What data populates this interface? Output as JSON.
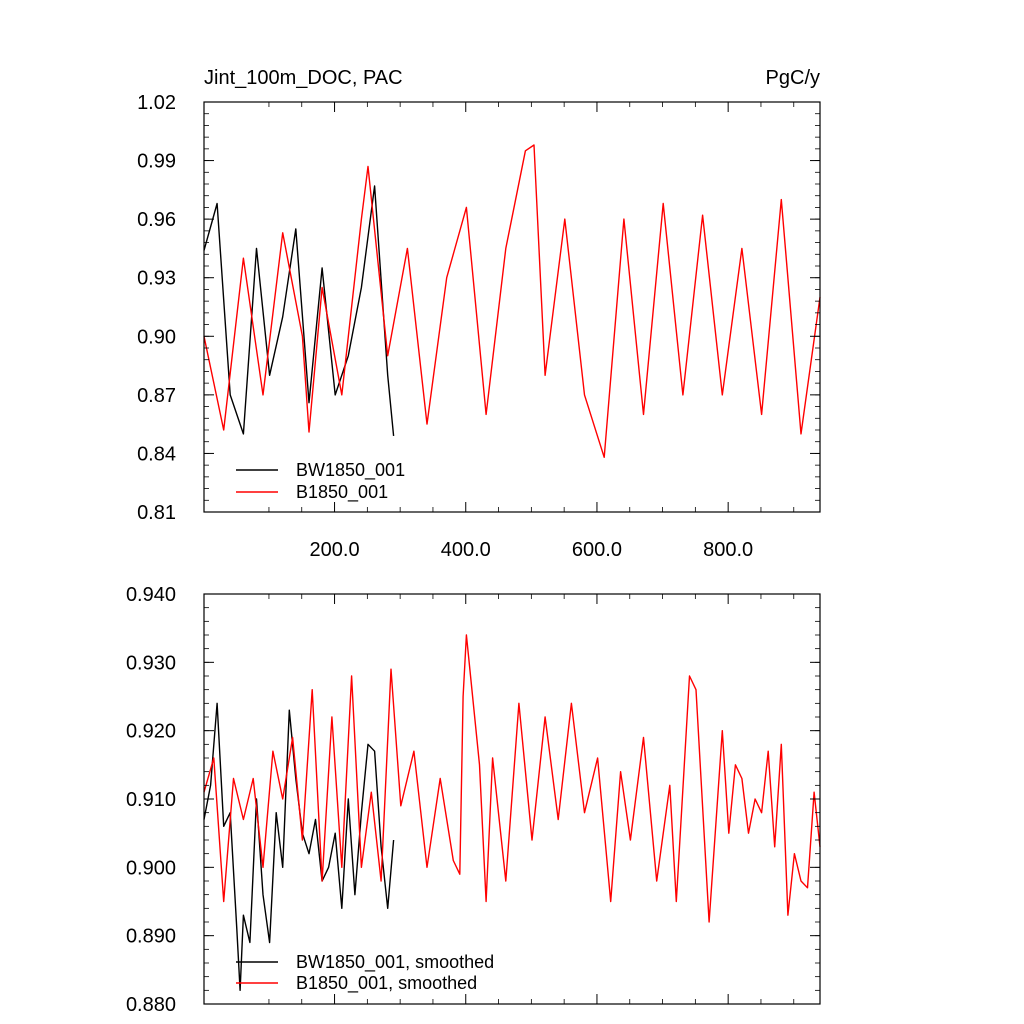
{
  "chart_data": [
    {
      "type": "line",
      "title": "Jint_100m_DOC, PAC",
      "units": "PgC/y",
      "xlabel": "",
      "ylabel": "",
      "xlim": [
        1,
        940
      ],
      "ylim": [
        0.81,
        1.02
      ],
      "yticks": [
        0.81,
        0.84,
        0.87,
        0.9,
        0.93,
        0.96,
        0.99,
        1.02
      ],
      "ytick_labels": [
        "0.81",
        "0.84",
        "0.87",
        "0.90",
        "0.93",
        "0.96",
        "0.99",
        "1.02"
      ],
      "xticks": [
        200,
        400,
        600,
        800
      ],
      "xtick_labels": [
        "200.0",
        "400.0",
        "600.0",
        "800.0"
      ],
      "legend_position": "bottom-left",
      "series": [
        {
          "name": "BW1850_001",
          "color": "#000000",
          "x": [
            1,
            21,
            41,
            61,
            81,
            101,
            121,
            141,
            161,
            181,
            201,
            221,
            241,
            261,
            281,
            290
          ],
          "y": [
            0.944,
            0.968,
            0.87,
            0.85,
            0.945,
            0.88,
            0.91,
            0.955,
            0.866,
            0.935,
            0.87,
            0.89,
            0.925,
            0.977,
            0.88,
            0.849
          ]
        },
        {
          "name": "B1850_001",
          "color": "#ff0000",
          "x": [
            1,
            31,
            61,
            91,
            121,
            151,
            161,
            181,
            211,
            241,
            251,
            281,
            311,
            341,
            371,
            401,
            431,
            461,
            491,
            504,
            521,
            551,
            581,
            611,
            641,
            671,
            701,
            731,
            761,
            791,
            821,
            851,
            881,
            911,
            940
          ],
          "y": [
            0.9,
            0.852,
            0.94,
            0.87,
            0.953,
            0.9,
            0.851,
            0.925,
            0.87,
            0.96,
            0.987,
            0.89,
            0.945,
            0.855,
            0.93,
            0.966,
            0.86,
            0.945,
            0.995,
            0.998,
            0.88,
            0.96,
            0.87,
            0.838,
            0.96,
            0.86,
            0.968,
            0.87,
            0.962,
            0.87,
            0.945,
            0.86,
            0.97,
            0.85,
            0.92
          ]
        }
      ]
    },
    {
      "type": "line",
      "title": "",
      "xlabel": "",
      "ylabel": "",
      "xlim": [
        1,
        940
      ],
      "ylim": [
        0.88,
        0.94
      ],
      "yticks": [
        0.88,
        0.89,
        0.9,
        0.91,
        0.92,
        0.93,
        0.94
      ],
      "ytick_labels": [
        "0.880",
        "0.890",
        "0.900",
        "0.910",
        "0.920",
        "0.930",
        "0.940"
      ],
      "legend_position": "bottom-left",
      "series": [
        {
          "name": "BW1850_001, smoothed",
          "color": "#000000",
          "x": [
            1,
            11,
            21,
            31,
            41,
            51,
            56,
            61,
            71,
            81,
            91,
            101,
            111,
            121,
            131,
            141,
            151,
            161,
            171,
            181,
            191,
            201,
            211,
            221,
            231,
            241,
            251,
            261,
            271,
            281,
            290
          ],
          "y": [
            0.907,
            0.912,
            0.924,
            0.906,
            0.908,
            0.891,
            0.882,
            0.893,
            0.889,
            0.91,
            0.896,
            0.889,
            0.908,
            0.9,
            0.923,
            0.913,
            0.905,
            0.902,
            0.907,
            0.898,
            0.9,
            0.905,
            0.894,
            0.91,
            0.896,
            0.908,
            0.918,
            0.917,
            0.903,
            0.894,
            0.904
          ]
        },
        {
          "name": "B1850_001, smoothed",
          "color": "#ff0000",
          "x": [
            1,
            16,
            31,
            46,
            61,
            76,
            91,
            106,
            121,
            136,
            151,
            166,
            181,
            196,
            211,
            226,
            241,
            256,
            271,
            286,
            301,
            321,
            341,
            361,
            381,
            391,
            396,
            401,
            421,
            431,
            441,
            461,
            481,
            501,
            521,
            541,
            561,
            581,
            601,
            621,
            636,
            651,
            671,
            691,
            711,
            721,
            741,
            751,
            771,
            791,
            801,
            811,
            821,
            831,
            841,
            851,
            861,
            871,
            881,
            891,
            901,
            911,
            921,
            931,
            940
          ],
          "y": [
            0.911,
            0.916,
            0.895,
            0.913,
            0.907,
            0.913,
            0.9,
            0.917,
            0.91,
            0.919,
            0.904,
            0.926,
            0.898,
            0.922,
            0.9,
            0.928,
            0.9,
            0.911,
            0.898,
            0.929,
            0.909,
            0.917,
            0.9,
            0.913,
            0.901,
            0.899,
            0.925,
            0.934,
            0.915,
            0.895,
            0.916,
            0.898,
            0.924,
            0.904,
            0.922,
            0.907,
            0.924,
            0.908,
            0.916,
            0.895,
            0.914,
            0.904,
            0.919,
            0.898,
            0.912,
            0.895,
            0.928,
            0.926,
            0.892,
            0.92,
            0.905,
            0.915,
            0.913,
            0.905,
            0.91,
            0.908,
            0.917,
            0.903,
            0.918,
            0.893,
            0.902,
            0.898,
            0.897,
            0.911,
            0.903
          ]
        }
      ]
    }
  ]
}
